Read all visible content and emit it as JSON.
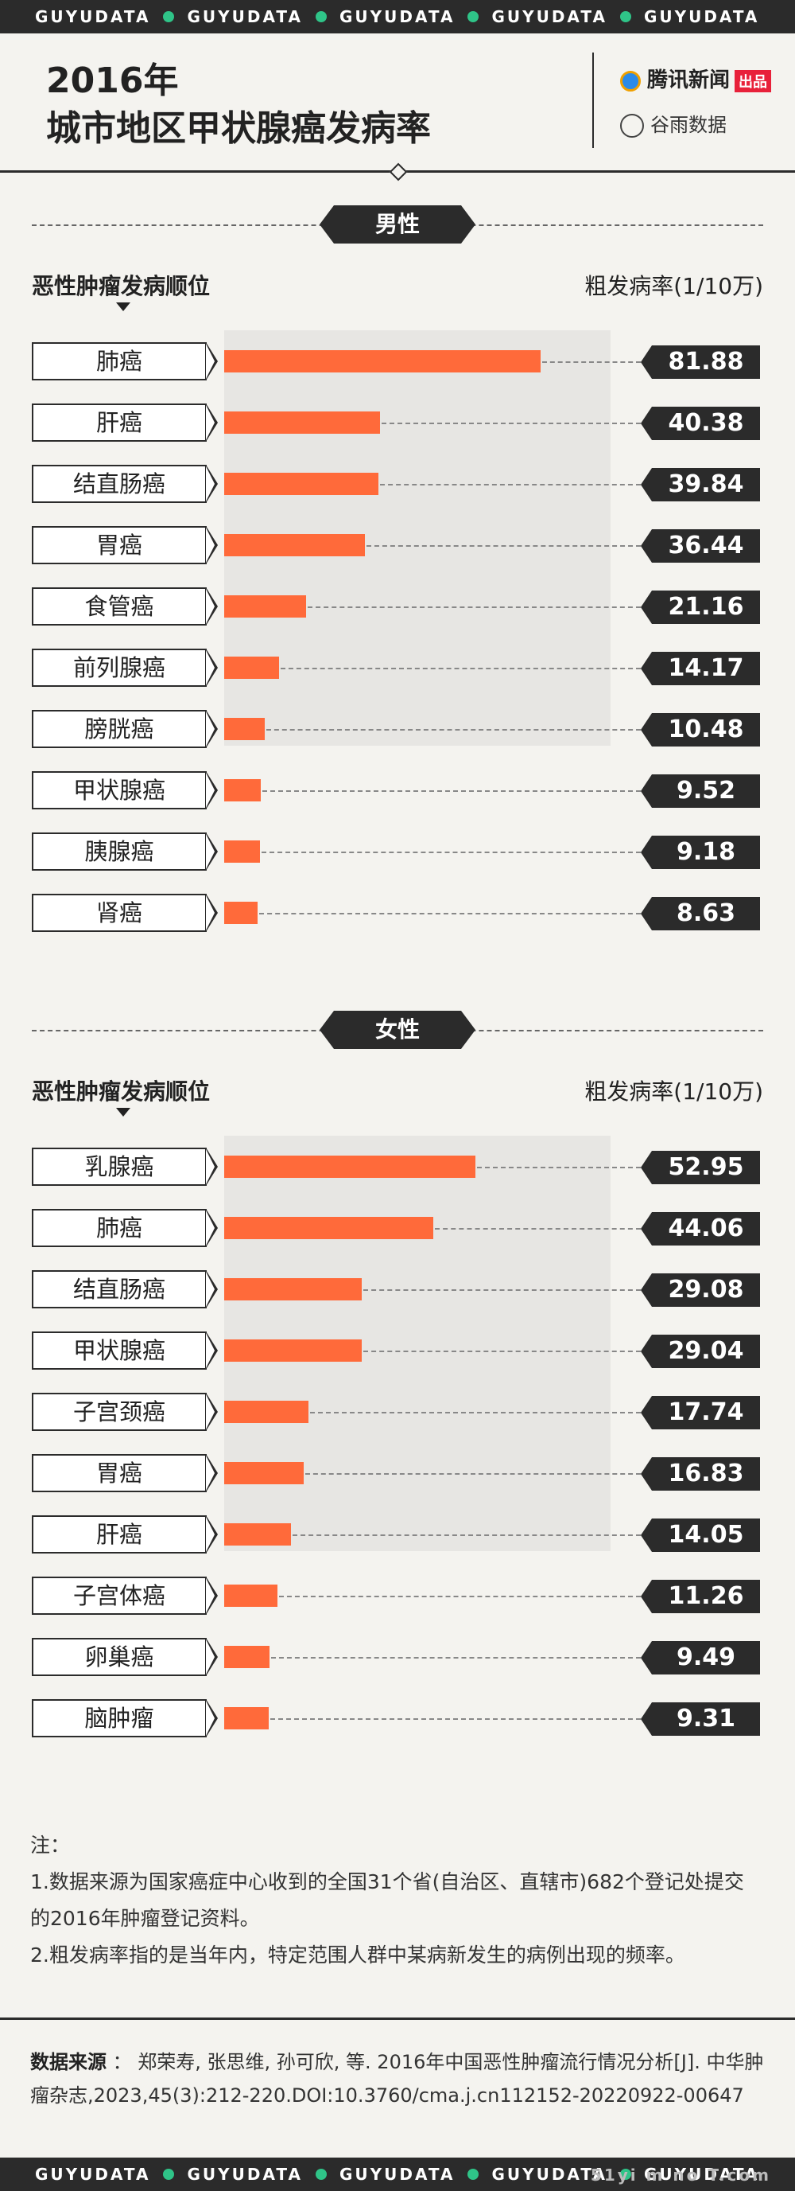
{
  "stripe_text": "GUYUDATA",
  "title_line1": "2016年",
  "title_line2": "城市地区甲状腺癌发病率",
  "brand_tencent": "腾讯新闻",
  "brand_tencent_tag": "出品",
  "brand_guyu": "谷雨数据",
  "colors": {
    "bar": "#ff6a3a",
    "dark": "#2b2b2b",
    "accent_dot": "#2fc488",
    "panel": "#f4f3ef"
  },
  "chart_data": [
    {
      "type": "bar",
      "orientation": "horizontal",
      "title": "男性",
      "xlabel": "粗发病率(1/10万)",
      "ylabel": "恶性肿瘤发病顺位",
      "categories": [
        "肺癌",
        "肝癌",
        "结直肠癌",
        "胃癌",
        "食管癌",
        "前列腺癌",
        "膀胱癌",
        "甲状腺癌",
        "胰腺癌",
        "肾癌"
      ],
      "values": [
        81.88,
        40.38,
        39.84,
        36.44,
        21.16,
        14.17,
        10.48,
        9.52,
        9.18,
        8.63
      ],
      "value_labels": [
        "81.88",
        "40.38",
        "39.84",
        "36.44",
        "21.16",
        "14.17",
        "10.48",
        "9.52",
        "9.18",
        "8.63"
      ],
      "xlim": [
        0,
        100
      ]
    },
    {
      "type": "bar",
      "orientation": "horizontal",
      "title": "女性",
      "xlabel": "粗发病率(1/10万)",
      "ylabel": "恶性肿瘤发病顺位",
      "categories": [
        "乳腺癌",
        "肺癌",
        "结直肠癌",
        "甲状腺癌",
        "子宫颈癌",
        "胃癌",
        "肝癌",
        "子宫体癌",
        "卵巢癌",
        "脑肿瘤"
      ],
      "values": [
        52.95,
        44.06,
        29.08,
        29.04,
        17.74,
        16.83,
        14.05,
        11.26,
        9.49,
        9.31
      ],
      "value_labels": [
        "52.95",
        "44.06",
        "29.08",
        "29.04",
        "17.74",
        "16.83",
        "14.05",
        "11.26",
        "9.49",
        "9.31"
      ],
      "xlim": [
        0,
        81.5
      ]
    }
  ],
  "notes": {
    "heading": "注：",
    "line1": "1.数据来源为国家癌症中心收到的全国31个省(自治区、直辖市)682个登记处提交的2016年肿瘤登记资料。",
    "line2": "2.粗发病率指的是当年内，特定范围人群中某病新发生的病例出现的频率。"
  },
  "source": {
    "label": "数据来源",
    "sep": "：",
    "text": "郑荣寿, 张思维, 孙可欣, 等. 2016年中国恶性肿瘤流行情况分析[J]. 中华肿瘤杂志,2023,45(3):212-220.DOI:10.3760/cma.j.cn112152-20220922-00647"
  },
  "watermark": "51yi m no T.com"
}
